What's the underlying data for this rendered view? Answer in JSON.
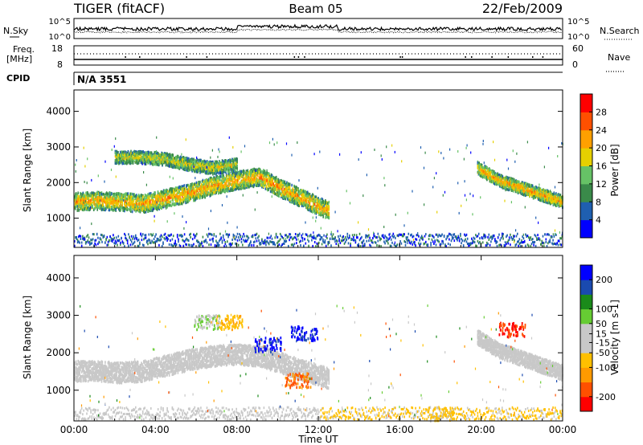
{
  "header": {
    "radar": "TIGER (fitACF)",
    "beam": "Beam 05",
    "date": "22/Feb/2009"
  },
  "noise_panel": {
    "left_label": "N.Sky",
    "right_label": "N.Search",
    "left_ticks": [
      "10^5",
      "10^0"
    ],
    "right_ticks": [
      "10^5",
      "10^0"
    ]
  },
  "freq_panel": {
    "left_label_1": "Freq.",
    "left_label_2": "[MHz]",
    "right_label": "Nave",
    "left_ticks": [
      "18",
      "8"
    ],
    "right_ticks": [
      "60",
      "0"
    ]
  },
  "cpid_panel": {
    "label": "CPID",
    "value": "N/A 3551"
  },
  "x_axis": {
    "label": "Time UT",
    "ticks": [
      "00:00",
      "04:00",
      "08:00",
      "12:00",
      "16:00",
      "20:00",
      "00:00"
    ],
    "tick_hours": [
      0,
      4,
      8,
      12,
      16,
      20,
      24
    ]
  },
  "colors": {
    "power_scale": [
      "#0000ff",
      "#1f5fb0",
      "#3a8a4a",
      "#66c266",
      "#e6d000",
      "#ffa000",
      "#ff5000",
      "#ff0000"
    ],
    "velocity_scale": [
      "#ff0000",
      "#ff5000",
      "#ff9a00",
      "#ffc000",
      "#c8c8c8",
      "#c8c8c8",
      "#66cc33",
      "#1a8a1a",
      "#1a4ab0",
      "#0000ff"
    ],
    "ground_scatter": "#c8c8c8"
  },
  "chart_data": [
    {
      "type": "heatmap",
      "name": "power",
      "ylabel": "Slant Range [km]",
      "xlabel": "",
      "xlim": [
        0,
        24
      ],
      "ylim": [
        180,
        4600
      ],
      "yticks": [
        1000,
        2000,
        3000,
        4000
      ],
      "colorbar": {
        "label": "Power [dB]",
        "ticks": [
          4,
          8,
          12,
          16,
          20,
          24,
          28
        ],
        "range": [
          0,
          32
        ]
      },
      "bands": [
        {
          "t0": 0.0,
          "t1": 12.5,
          "centers": [
            1450,
            1480,
            1450,
            1400,
            1550,
            1700,
            1900,
            2050,
            2150,
            1800,
            1500,
            1200
          ],
          "width": 500,
          "peak_db": 22
        },
        {
          "t0": 2.0,
          "t1": 8.0,
          "centers": [
            2700,
            2700,
            2650,
            2500,
            2400,
            2500
          ],
          "width": 350,
          "peak_db": 18
        },
        {
          "t0": 19.8,
          "t1": 24.0,
          "centers": [
            2400,
            2050,
            1850,
            1650,
            1450
          ],
          "width": 350,
          "peak_db": 22
        }
      ]
    },
    {
      "type": "heatmap",
      "name": "velocity",
      "ylabel": "Slant Range [km]",
      "xlabel": "Time UT",
      "xlim": [
        0,
        24
      ],
      "ylim": [
        180,
        4600
      ],
      "yticks": [
        1000,
        2000,
        3000,
        4000
      ],
      "colorbar": {
        "label": "Velocity [m s-1]",
        "ticks": [
          200,
          100,
          50,
          15,
          -15,
          -50,
          -100,
          -200
        ],
        "range": [
          -250,
          250
        ]
      },
      "ground_scatter_bands": [
        {
          "t0": 0.0,
          "t1": 12.5,
          "centers": [
            1500,
            1500,
            1450,
            1500,
            1650,
            1800,
            1900,
            1950,
            1900,
            1700,
            1500,
            1300
          ],
          "width": 550
        },
        {
          "t0": 19.8,
          "t1": 24.0,
          "centers": [
            2400,
            2050,
            1850,
            1650,
            1450
          ],
          "width": 400
        }
      ],
      "patches": [
        {
          "t": 9.5,
          "r": 2200,
          "v": 220
        },
        {
          "t": 11.3,
          "r": 2500,
          "v": 210
        },
        {
          "t": 7.6,
          "r": 2800,
          "v": -80
        },
        {
          "t": 6.5,
          "r": 2800,
          "v": 40
        },
        {
          "t": 11.0,
          "r": 1250,
          "v": -160
        },
        {
          "t": 21.5,
          "r": 2600,
          "v": -200
        },
        {
          "t": 18.0,
          "r": 350,
          "v": -60
        }
      ]
    }
  ]
}
